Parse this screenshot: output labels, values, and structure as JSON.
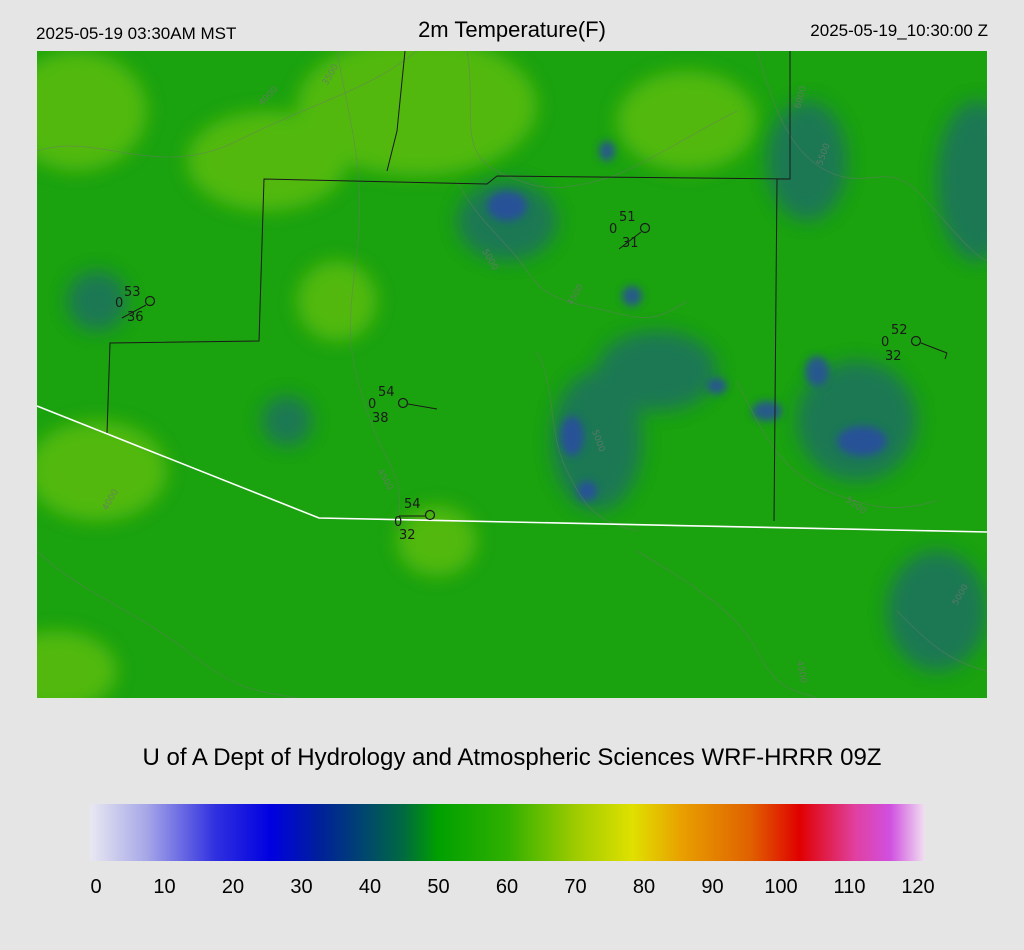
{
  "header": {
    "local_time": "2025-05-19 03:30AM MST",
    "title": "2m Temperature(F)",
    "utc_time": "2025-05-19_10:30:00 Z"
  },
  "credit": "U of A Dept of Hydrology and Atmospheric Sciences WRF-HRRR 09Z",
  "colors": {
    "background": "#e5e5e5",
    "field_base": "#1aa20f",
    "field_warm": "#5cbd0a",
    "field_cool": "#1a5a78",
    "cold_core": "#2a4aa8",
    "state_border": "#ffffff",
    "county_line": "#1a1a1a"
  },
  "stations": [
    {
      "temp": "53",
      "gust": "0",
      "dewpoint": "36"
    },
    {
      "temp": "51",
      "gust": "0",
      "dewpoint": "31"
    },
    {
      "temp": "52",
      "gust": "0",
      "dewpoint": "32"
    },
    {
      "temp": "54",
      "gust": "0",
      "dewpoint": "38"
    },
    {
      "temp": "54",
      "gust": "0",
      "dewpoint": "32"
    }
  ],
  "contour_labels": [
    "6000",
    "5500",
    "5000",
    "4500",
    "4000",
    "3500"
  ],
  "colorbar": {
    "ticks": [
      "0",
      "10",
      "20",
      "30",
      "40",
      "50",
      "60",
      "70",
      "80",
      "90",
      "100",
      "110",
      "120"
    ],
    "stops": [
      {
        "value": 0,
        "color": "#e8e8f2"
      },
      {
        "value": 8,
        "color": "#a8a8e8"
      },
      {
        "value": 18,
        "color": "#3030e0"
      },
      {
        "value": 26,
        "color": "#0000e0"
      },
      {
        "value": 33,
        "color": "#00209a"
      },
      {
        "value": 40,
        "color": "#004a6a"
      },
      {
        "value": 45,
        "color": "#006a40"
      },
      {
        "value": 50,
        "color": "#00a000"
      },
      {
        "value": 60,
        "color": "#30b000"
      },
      {
        "value": 70,
        "color": "#a0cc00"
      },
      {
        "value": 78,
        "color": "#e0e000"
      },
      {
        "value": 85,
        "color": "#e8a000"
      },
      {
        "value": 95,
        "color": "#e06000"
      },
      {
        "value": 102,
        "color": "#e00000"
      },
      {
        "value": 110,
        "color": "#e040a0"
      },
      {
        "value": 115,
        "color": "#d050e0"
      },
      {
        "value": 120,
        "color": "#f0e0f0"
      }
    ]
  }
}
